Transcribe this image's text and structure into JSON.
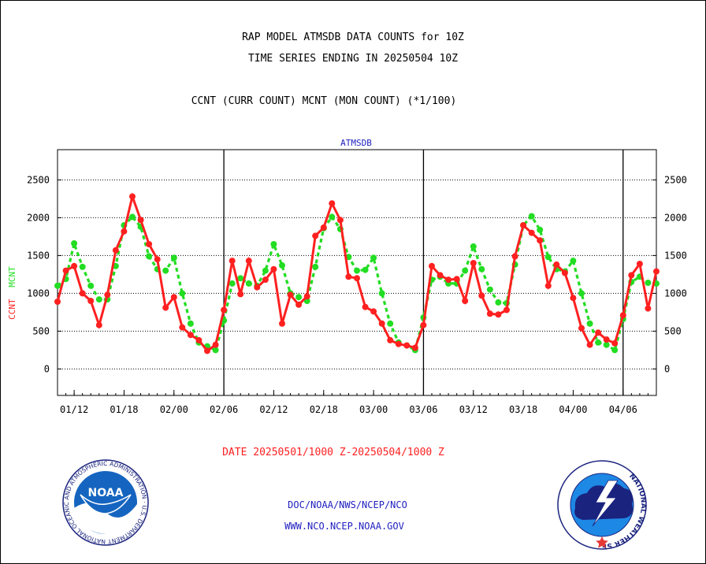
{
  "header": {
    "title_line1": "RAP MODEL ATMSDB DATA COUNTS for 10Z",
    "title_line2": "TIME SERIES ENDING IN 20250504 10Z",
    "legend_line": "CCNT (CURR COUNT) MCNT (MON COUNT) (*1/100)"
  },
  "chart_data": {
    "type": "line",
    "title": "ATMSDB",
    "ylabel_ccnt": "CCNT",
    "ylabel_mcnt": "MCNT",
    "ylim": [
      -350,
      2900
    ],
    "yticks": [
      0,
      500,
      1000,
      1500,
      2000,
      2500
    ],
    "ytick_labels": [
      "0",
      "500",
      "1000",
      "1500",
      "2000",
      "2500"
    ],
    "xticks": [
      {
        "label": "01/12",
        "x": 2
      },
      {
        "label": "01/18",
        "x": 8
      },
      {
        "label": "02/00",
        "x": 14
      },
      {
        "label": "02/06",
        "x": 20
      },
      {
        "label": "02/12",
        "x": 26
      },
      {
        "label": "02/18",
        "x": 32
      },
      {
        "label": "03/00",
        "x": 38
      },
      {
        "label": "03/06",
        "x": 44
      },
      {
        "label": "03/12",
        "x": 50
      },
      {
        "label": "03/18",
        "x": 56
      },
      {
        "label": "04/00",
        "x": 62
      },
      {
        "label": "04/06",
        "x": 68
      }
    ],
    "day_boundaries": [
      20,
      44,
      68
    ],
    "grid": true,
    "xlabel": "DATE 20250501/1000 Z-20250504/1000 Z",
    "colors": {
      "ccnt": "#ff2020",
      "mcnt": "#22dd22",
      "axis": "#000000",
      "title": "#2020c0",
      "xlabel": "#ff2020"
    },
    "series": [
      {
        "key": "ccnt",
        "values": [
          890,
          1300,
          1360,
          1000,
          900,
          580,
          980,
          1570,
          1820,
          2280,
          1970,
          1650,
          1450,
          810,
          950,
          550,
          450,
          380,
          240,
          320,
          780,
          1430,
          990,
          1430,
          1080,
          1180,
          1320,
          600,
          980,
          850,
          960,
          1760,
          1870,
          2190,
          1970,
          1220,
          1200,
          820,
          760,
          600,
          380,
          330,
          310,
          280,
          580,
          1360,
          1240,
          1180,
          1190,
          900,
          1400,
          970,
          730,
          720,
          780,
          1490,
          1900,
          1800,
          1700,
          1100,
          1380,
          1270,
          940,
          540,
          320,
          480,
          390,
          340,
          710,
          1240,
          1390,
          800,
          1290
        ]
      },
      {
        "key": "mcnt",
        "values": [
          1100,
          1190,
          1660,
          1350,
          1100,
          920,
          920,
          1360,
          1900,
          2010,
          1880,
          1490,
          1320,
          1300,
          1470,
          1000,
          600,
          350,
          300,
          250,
          640,
          1130,
          1200,
          1130,
          1100,
          1300,
          1650,
          1370,
          1000,
          950,
          900,
          1350,
          1860,
          2010,
          1850,
          1480,
          1300,
          1310,
          1470,
          1000,
          600,
          350,
          310,
          250,
          680,
          1180,
          1220,
          1130,
          1130,
          1300,
          1620,
          1320,
          1050,
          880,
          870,
          1380,
          1900,
          2020,
          1840,
          1480,
          1320,
          1290,
          1430,
          1000,
          600,
          350,
          320,
          250,
          660,
          1150,
          1220,
          1140,
          1130
        ]
      }
    ]
  },
  "footer": {
    "org_line1": "DOC/NOAA/NWS/NCEP/NCO",
    "org_line2": "WWW.NCO.NCEP.NOAA.GOV",
    "noaa_logo_label": "NOAA",
    "noaa_ring_text": "NATIONAL OCEANIC AND ATMOSPHERIC ADMINISTRATION · U.S. DEPARTMENT OF COMMERCE ·",
    "nws_ring_text": "NATIONAL WEATHER SERVICE"
  }
}
